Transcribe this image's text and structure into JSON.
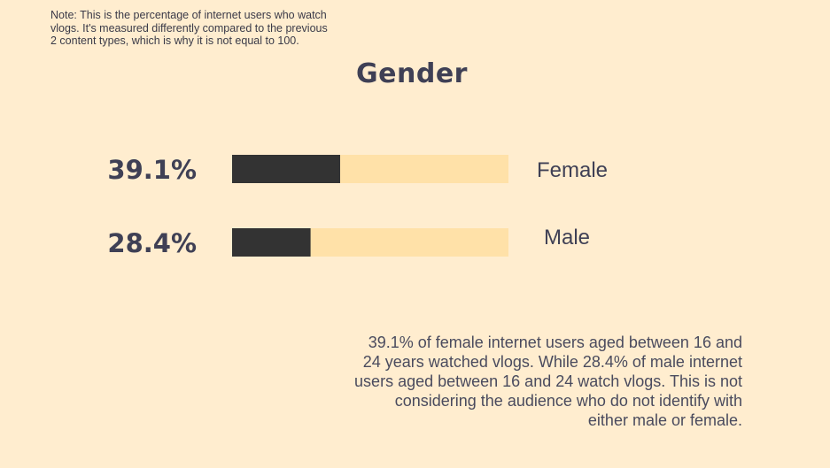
{
  "note": "Note: This is the percentage of internet users who watch vlogs. It's measured differently compared to the previous 2 content types, which is why it is not equal to 100.",
  "description": "39.1% of female internet users aged between 16 and 24 years watched vlogs. While 28.4% of male internet users aged between 16 and 24 watch vlogs. This is not considering the audience who do not identify with either male or female.",
  "colors": {
    "background": "#FFEDCF",
    "bar_fill": "#333333",
    "bar_track": "#FFE1A8",
    "text": "#3F4055"
  },
  "chart_data": {
    "type": "bar",
    "orientation": "horizontal",
    "title": "Gender",
    "categories": [
      "Female",
      "Male"
    ],
    "values": [
      39.1,
      28.4
    ],
    "value_labels": [
      "39.1%",
      "28.4%"
    ],
    "xlim": [
      0,
      100
    ],
    "grid": false
  }
}
